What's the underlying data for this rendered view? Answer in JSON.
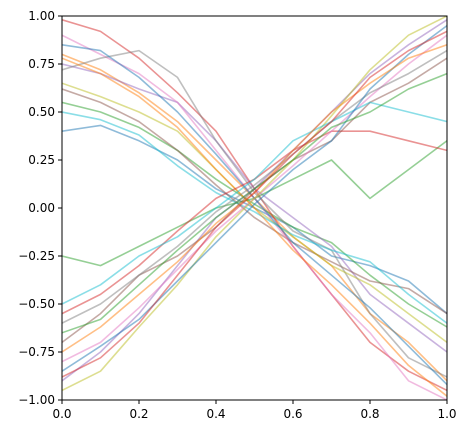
{
  "chart_data": {
    "type": "line",
    "title": "",
    "xlabel": "",
    "ylabel": "",
    "xlim": [
      0.0,
      1.0
    ],
    "ylim": [
      -1.0,
      1.0
    ],
    "grid": false,
    "legend": "none",
    "xticks": [
      "0.0",
      "0.2",
      "0.4",
      "0.6",
      "0.8",
      "1.0"
    ],
    "yticks": [
      "1.00",
      "0.75",
      "0.50",
      "0.25",
      "0.00",
      "−0.25",
      "−0.50",
      "−0.75",
      "−1.00"
    ],
    "line_alpha": 0.5,
    "palette": [
      "#1f77b4",
      "#ff7f0e",
      "#2ca02c",
      "#d62728",
      "#9467bd",
      "#8c564b",
      "#e377c2",
      "#7f7f7f",
      "#bcbd22",
      "#17becf"
    ],
    "series": [
      {
        "x": [
          0.0,
          0.1,
          0.2,
          0.3,
          0.4,
          0.5,
          0.6,
          0.7,
          0.8,
          0.9,
          1.0
        ],
        "y": [
          0.4,
          0.43,
          0.35,
          0.25,
          0.1,
          0.0,
          -0.1,
          -0.25,
          -0.3,
          -0.38,
          -0.55
        ]
      },
      {
        "x": [
          0.0,
          0.1,
          0.2,
          0.3,
          0.4,
          0.5,
          0.6,
          0.7,
          0.8,
          0.9,
          1.0
        ],
        "y": [
          0.8,
          0.72,
          0.6,
          0.45,
          0.25,
          0.05,
          -0.15,
          -0.3,
          -0.55,
          -0.7,
          -0.9
        ]
      },
      {
        "x": [
          0.0,
          0.1,
          0.2,
          0.3,
          0.4,
          0.5,
          0.6,
          0.7,
          0.8,
          0.9,
          1.0
        ],
        "y": [
          0.55,
          0.5,
          0.42,
          0.3,
          0.15,
          0.02,
          -0.1,
          -0.18,
          -0.35,
          -0.5,
          -0.62
        ]
      },
      {
        "x": [
          0.0,
          0.1,
          0.2,
          0.3,
          0.4,
          0.5,
          0.6,
          0.7,
          0.8,
          0.9,
          1.0
        ],
        "y": [
          0.98,
          0.92,
          0.78,
          0.6,
          0.4,
          0.1,
          -0.2,
          -0.45,
          -0.7,
          -0.85,
          -0.95
        ]
      },
      {
        "x": [
          0.0,
          0.1,
          0.2,
          0.3,
          0.4,
          0.5,
          0.6,
          0.7,
          0.8,
          0.9,
          1.0
        ],
        "y": [
          0.75,
          0.7,
          0.62,
          0.55,
          0.35,
          0.1,
          -0.05,
          -0.2,
          -0.45,
          -0.6,
          -0.75
        ]
      },
      {
        "x": [
          0.0,
          0.1,
          0.2,
          0.3,
          0.4,
          0.5,
          0.6,
          0.7,
          0.8,
          0.9,
          1.0
        ],
        "y": [
          0.62,
          0.55,
          0.45,
          0.3,
          0.12,
          -0.05,
          -0.18,
          -0.28,
          -0.38,
          -0.42,
          -0.55
        ]
      },
      {
        "x": [
          0.0,
          0.1,
          0.2,
          0.3,
          0.4,
          0.5,
          0.6,
          0.7,
          0.8,
          0.9,
          1.0
        ],
        "y": [
          0.9,
          0.8,
          0.7,
          0.55,
          0.3,
          0.05,
          -0.2,
          -0.45,
          -0.65,
          -0.9,
          -1.0
        ]
      },
      {
        "x": [
          0.0,
          0.1,
          0.2,
          0.3,
          0.4,
          0.5,
          0.6,
          0.7,
          0.8,
          0.9,
          1.0
        ],
        "y": [
          0.72,
          0.78,
          0.82,
          0.68,
          0.35,
          0.08,
          -0.12,
          -0.22,
          -0.55,
          -0.78,
          -0.88
        ]
      },
      {
        "x": [
          0.0,
          0.1,
          0.2,
          0.3,
          0.4,
          0.5,
          0.6,
          0.7,
          0.8,
          0.9,
          1.0
        ],
        "y": [
          0.65,
          0.58,
          0.5,
          0.4,
          0.2,
          0.0,
          -0.15,
          -0.3,
          -0.4,
          -0.55,
          -0.7
        ]
      },
      {
        "x": [
          0.0,
          0.1,
          0.2,
          0.3,
          0.4,
          0.5,
          0.6,
          0.7,
          0.8,
          0.9,
          1.0
        ],
        "y": [
          0.5,
          0.46,
          0.38,
          0.22,
          0.08,
          -0.02,
          -0.14,
          -0.22,
          -0.28,
          -0.45,
          -0.6
        ]
      },
      {
        "x": [
          0.0,
          0.1,
          0.2,
          0.3,
          0.4,
          0.5,
          0.6,
          0.7,
          0.8,
          0.9,
          1.0
        ],
        "y": [
          0.85,
          0.82,
          0.68,
          0.5,
          0.28,
          0.05,
          -0.18,
          -0.35,
          -0.52,
          -0.72,
          -0.92
        ]
      },
      {
        "x": [
          0.0,
          0.1,
          0.2,
          0.3,
          0.4,
          0.5,
          0.6,
          0.7,
          0.8,
          0.9,
          1.0
        ],
        "y": [
          0.78,
          0.7,
          0.58,
          0.42,
          0.2,
          0.0,
          -0.22,
          -0.4,
          -0.6,
          -0.82,
          -0.98
        ]
      },
      {
        "x": [
          0.0,
          0.1,
          0.2,
          0.3,
          0.4,
          0.5,
          0.6,
          0.7,
          0.8,
          0.9,
          1.0
        ],
        "y": [
          -0.25,
          -0.3,
          -0.2,
          -0.1,
          0.0,
          0.05,
          0.15,
          0.25,
          0.05,
          0.2,
          0.35
        ]
      },
      {
        "x": [
          0.0,
          0.1,
          0.2,
          0.3,
          0.4,
          0.5,
          0.6,
          0.7,
          0.8,
          0.9,
          1.0
        ],
        "y": [
          -0.55,
          -0.45,
          -0.3,
          -0.12,
          0.05,
          0.15,
          0.3,
          0.4,
          0.4,
          0.35,
          0.3
        ]
      },
      {
        "x": [
          0.0,
          0.1,
          0.2,
          0.3,
          0.4,
          0.5,
          0.6,
          0.7,
          0.8,
          0.9,
          1.0
        ],
        "y": [
          -0.9,
          -0.75,
          -0.55,
          -0.3,
          -0.05,
          0.1,
          0.3,
          0.5,
          0.7,
          0.85,
          0.98
        ]
      },
      {
        "x": [
          0.0,
          0.1,
          0.2,
          0.3,
          0.4,
          0.5,
          0.6,
          0.7,
          0.8,
          0.9,
          1.0
        ],
        "y": [
          -0.7,
          -0.55,
          -0.35,
          -0.25,
          -0.1,
          0.1,
          0.25,
          0.35,
          0.55,
          0.65,
          0.78
        ]
      },
      {
        "x": [
          0.0,
          0.1,
          0.2,
          0.3,
          0.4,
          0.5,
          0.6,
          0.7,
          0.8,
          0.9,
          1.0
        ],
        "y": [
          -0.8,
          -0.7,
          -0.52,
          -0.32,
          -0.12,
          0.05,
          0.22,
          0.4,
          0.58,
          0.75,
          0.9
        ]
      },
      {
        "x": [
          0.0,
          0.1,
          0.2,
          0.3,
          0.4,
          0.5,
          0.6,
          0.7,
          0.8,
          0.9,
          1.0
        ],
        "y": [
          -0.6,
          -0.5,
          -0.35,
          -0.2,
          -0.02,
          0.12,
          0.28,
          0.45,
          0.6,
          0.7,
          0.82
        ]
      },
      {
        "x": [
          0.0,
          0.1,
          0.2,
          0.3,
          0.4,
          0.5,
          0.6,
          0.7,
          0.8,
          0.9,
          1.0
        ],
        "y": [
          -0.95,
          -0.85,
          -0.62,
          -0.4,
          -0.15,
          0.05,
          0.25,
          0.48,
          0.72,
          0.9,
          1.0
        ]
      },
      {
        "x": [
          0.0,
          0.1,
          0.2,
          0.3,
          0.4,
          0.5,
          0.6,
          0.7,
          0.8,
          0.9,
          1.0
        ],
        "y": [
          -0.5,
          -0.4,
          -0.25,
          -0.15,
          0.0,
          0.15,
          0.35,
          0.45,
          0.55,
          0.5,
          0.45
        ]
      },
      {
        "x": [
          0.0,
          0.1,
          0.2,
          0.3,
          0.4,
          0.5,
          0.6,
          0.7,
          0.8,
          0.9,
          1.0
        ],
        "y": [
          -0.85,
          -0.72,
          -0.58,
          -0.38,
          -0.18,
          0.02,
          0.2,
          0.35,
          0.62,
          0.8,
          0.95
        ]
      },
      {
        "x": [
          0.0,
          0.1,
          0.2,
          0.3,
          0.4,
          0.5,
          0.6,
          0.7,
          0.8,
          0.9,
          1.0
        ],
        "y": [
          -0.75,
          -0.62,
          -0.45,
          -0.28,
          -0.08,
          0.08,
          0.3,
          0.5,
          0.65,
          0.78,
          0.85
        ]
      },
      {
        "x": [
          0.0,
          0.1,
          0.2,
          0.3,
          0.4,
          0.5,
          0.6,
          0.7,
          0.8,
          0.9,
          1.0
        ],
        "y": [
          -0.65,
          -0.58,
          -0.4,
          -0.22,
          -0.05,
          0.1,
          0.25,
          0.42,
          0.5,
          0.62,
          0.7
        ]
      },
      {
        "x": [
          0.0,
          0.1,
          0.2,
          0.3,
          0.4,
          0.5,
          0.6,
          0.7,
          0.8,
          0.9,
          1.0
        ],
        "y": [
          -0.88,
          -0.78,
          -0.6,
          -0.35,
          -0.1,
          0.08,
          0.28,
          0.45,
          0.68,
          0.82,
          0.92
        ]
      }
    ]
  }
}
